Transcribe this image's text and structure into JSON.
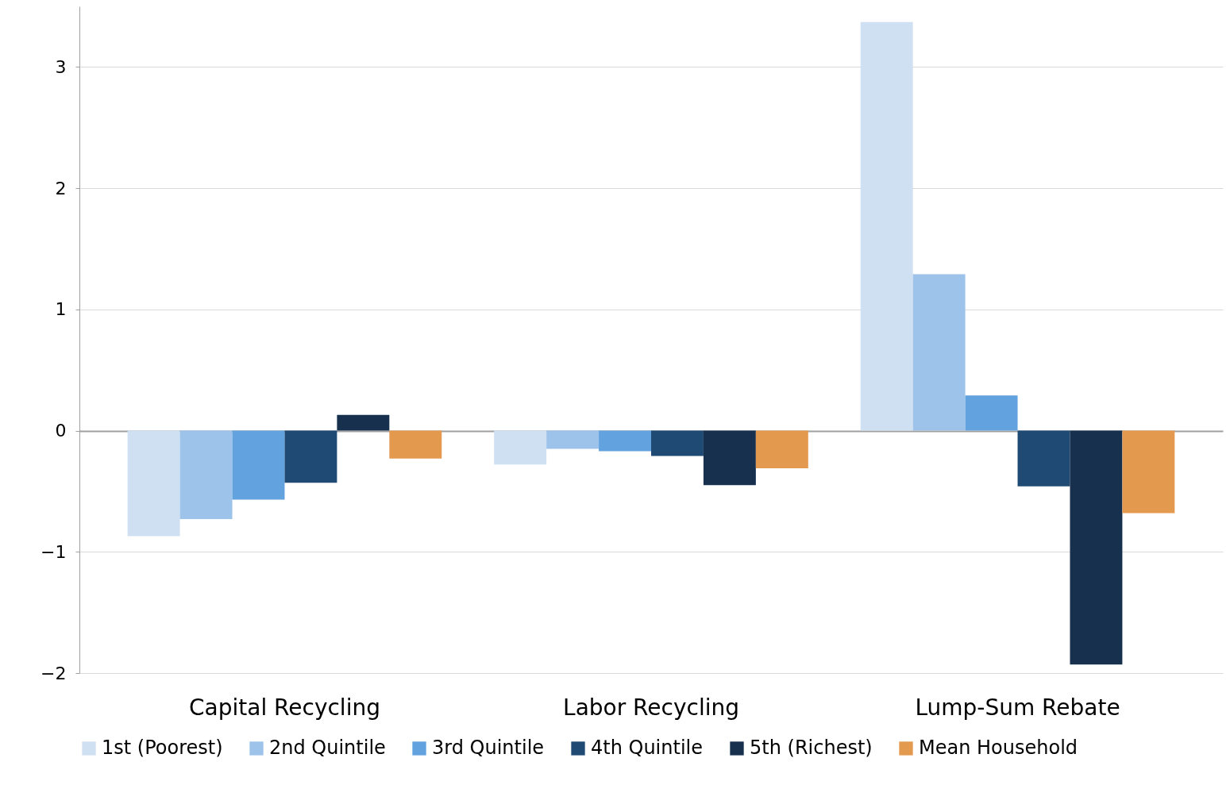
{
  "chart_data": {
    "type": "bar",
    "categories": [
      "Capital Recycling",
      "Labor Recycling",
      "Lump-Sum Rebate"
    ],
    "series": [
      {
        "name": "1st (Poorest)",
        "color": "#cfe0f2",
        "values": [
          -0.87,
          -0.28,
          3.37
        ]
      },
      {
        "name": "2nd Quintile",
        "color": "#9dc3ea",
        "values": [
          -0.73,
          -0.15,
          1.29
        ]
      },
      {
        "name": "3rd Quintile",
        "color": "#62a2de",
        "values": [
          -0.57,
          -0.17,
          0.29
        ]
      },
      {
        "name": "4th Quintile",
        "color": "#1f4a74",
        "values": [
          -0.43,
          -0.21,
          -0.46
        ]
      },
      {
        "name": "5th (Richest)",
        "color": "#16304e",
        "values": [
          0.13,
          -0.45,
          -1.93
        ]
      },
      {
        "name": "Mean Household",
        "color": "#e3994e",
        "values": [
          -0.23,
          -0.31,
          -0.68
        ]
      }
    ],
    "ylim": [
      -2,
      3.5
    ],
    "yticks": [
      -2,
      -1,
      0,
      1,
      2,
      3
    ],
    "grid": "y",
    "legend": "bottom"
  }
}
